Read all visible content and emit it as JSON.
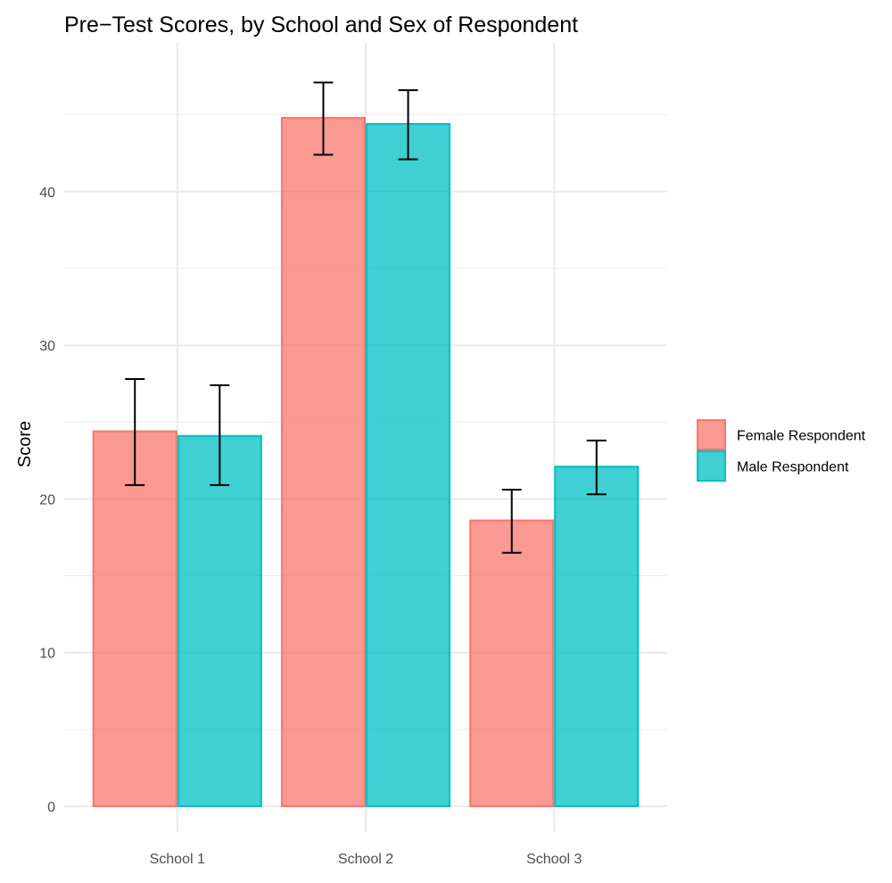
{
  "chart_data": {
    "type": "bar",
    "title": "Pre−Test Scores, by School and Sex of Respondent",
    "xlabel": "",
    "ylabel": "Score",
    "categories": [
      "School 1",
      "School 2",
      "School 3"
    ],
    "series": [
      {
        "name": "Female Respondent",
        "color": "#F8766D",
        "values": [
          24.4,
          44.8,
          18.6
        ],
        "error_low": [
          20.9,
          42.4,
          16.5
        ],
        "error_high": [
          27.8,
          47.1,
          20.6
        ]
      },
      {
        "name": "Male Respondent",
        "color": "#00BFC4",
        "values": [
          24.1,
          44.4,
          22.1
        ],
        "error_low": [
          20.9,
          42.1,
          20.3
        ],
        "error_high": [
          27.4,
          46.6,
          23.8
        ]
      }
    ],
    "ylim": [
      0,
      47.5
    ],
    "yticks": [
      0,
      10,
      20,
      30,
      40
    ],
    "grid": true,
    "legend_position": "right"
  }
}
